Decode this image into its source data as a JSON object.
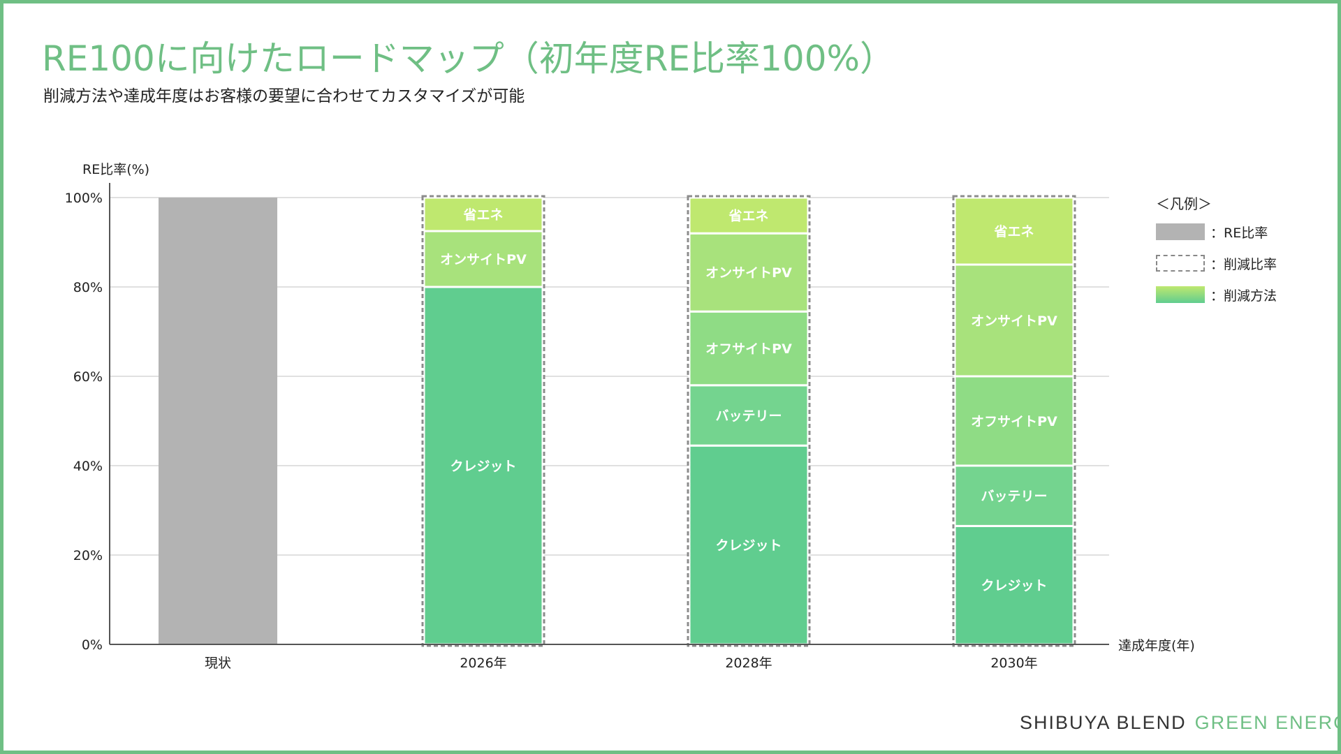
{
  "title": "RE100に向けたロードマップ（初年度RE比率100%）",
  "subtitle": "削減方法や達成年度はお客様の要望に合わせてカスタマイズが可能",
  "legend": {
    "title": "＜凡例＞",
    "items": [
      {
        "label": "：RE比率",
        "swatch": "re"
      },
      {
        "label": "：削減比率",
        "swatch": "reduction"
      },
      {
        "label": "：削減方法",
        "swatch": "method"
      }
    ]
  },
  "brand": {
    "dark": "SHIBUYA BLEND",
    "green": "GREEN ENERGY"
  },
  "colors": {
    "accent": "#6fbf84",
    "re_bar": "#b3b3b3",
    "credit": "#60cd8f",
    "battery": "#74d48f",
    "offsite_pv": "#8fdc85",
    "onsite_pv": "#a8e27c",
    "saving": "#bfe86f"
  },
  "chart_data": {
    "type": "bar",
    "stacked": true,
    "ylabel": "RE比率(%)",
    "xlabel": "達成年度(年)",
    "ylim": [
      0,
      100
    ],
    "yticks": [
      "0%",
      "20%",
      "40%",
      "60%",
      "80%",
      "100%"
    ],
    "grid": true,
    "legend_position": "right",
    "categories": [
      "現状",
      "2026年",
      "2028年",
      "2030年"
    ],
    "series": [
      {
        "name": "RE比率",
        "values": [
          100,
          null,
          null,
          null
        ]
      },
      {
        "name": "クレジット",
        "values": [
          null,
          80,
          44.5,
          26.5
        ]
      },
      {
        "name": "バッテリー",
        "values": [
          null,
          null,
          13.5,
          13.5
        ]
      },
      {
        "name": "オフサイトPV",
        "values": [
          null,
          null,
          16.5,
          20
        ]
      },
      {
        "name": "オンサイトPV",
        "values": [
          null,
          12.5,
          17.5,
          25
        ]
      },
      {
        "name": "省エネ",
        "values": [
          null,
          7.5,
          8,
          15
        ]
      }
    ],
    "reduction_outline": [
      false,
      true,
      true,
      true
    ]
  }
}
